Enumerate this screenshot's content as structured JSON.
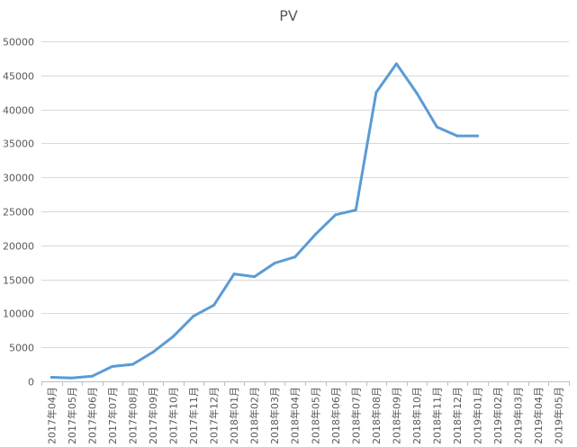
{
  "chart_data": {
    "type": "line",
    "title": "PV",
    "xlabel": "",
    "ylabel": "",
    "ylim": [
      0,
      50000
    ],
    "yticks": [
      0,
      5000,
      10000,
      15000,
      20000,
      25000,
      30000,
      35000,
      40000,
      45000,
      50000
    ],
    "ytick_labels": [
      "0",
      "5000",
      "10000",
      "15000",
      "20000",
      "25000",
      "30000",
      "35000",
      "40000",
      "45000",
      "50000"
    ],
    "grid": "horizontal",
    "legend": "none",
    "categories": [
      "2017年04月",
      "2017年05月",
      "2017年06月",
      "2017年07月",
      "2017年08月",
      "2017年09月",
      "2017年10月",
      "2017年11月",
      "2017年12月",
      "2018年01月",
      "2018年02月",
      "2018年03月",
      "2018年04月",
      "2018年05月",
      "2018年06月",
      "2018年07月",
      "2018年08月",
      "2018年09月",
      "2018年10月",
      "2018年11月",
      "2018年12月",
      "2019年01月",
      "2019年02月",
      "2019年03月",
      "2019年04月",
      "2019年05月"
    ],
    "series": [
      {
        "color": "#5b9bd5",
        "values": [
          600,
          500,
          750,
          2200,
          2500,
          4300,
          6600,
          9600,
          11200,
          15800,
          15400,
          17400,
          18300,
          21600,
          24500,
          25200,
          42500,
          46700,
          42400,
          37400,
          36100,
          36100,
          null,
          null,
          null,
          null
        ]
      }
    ]
  }
}
